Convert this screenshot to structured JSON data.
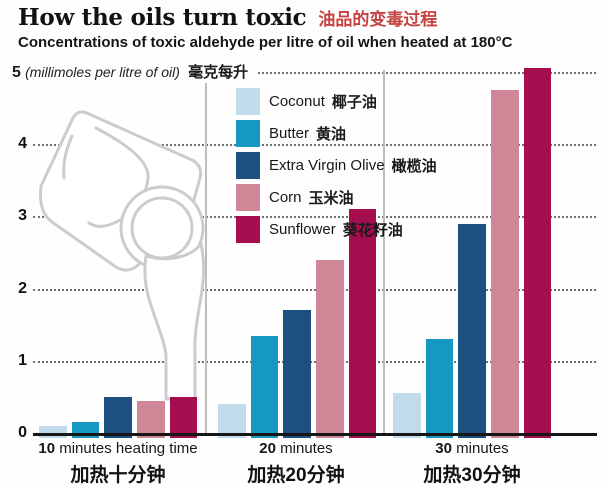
{
  "colors": {
    "title_cn_red": "#c64242",
    "grid": "#6f6f6f",
    "separator": "#bdbdbd",
    "bottle_outline": "#c9cdd0",
    "axis": "#161616"
  },
  "chart_data": {
    "type": "bar",
    "title": "How the oils turn toxic",
    "title_cn": "油品的变毒过程",
    "subtitle": "Concentrations of toxic aldehyde per litre of oil when heated at 180°C",
    "unit_label_en": "(millimoles per litre of oil)",
    "unit_label_cn": "毫克每升",
    "ylim": [
      0,
      5
    ],
    "ytick_step": 1,
    "grid": "dotted-horizontal",
    "legend_position": "top-center",
    "categories": [
      {
        "en_bold": "10",
        "en_rest": " minutes heating time",
        "cn": "加热十分钟"
      },
      {
        "en_bold": "20",
        "en_rest": " minutes",
        "cn": "加热20分钟"
      },
      {
        "en_bold": "30",
        "en_rest": " minutes",
        "cn": "加热30分钟"
      }
    ],
    "series": [
      {
        "name": "Coconut",
        "name_cn": "椰子油",
        "color": "#c2dbea",
        "values": [
          0.1,
          0.4,
          0.55
        ]
      },
      {
        "name": "Butter",
        "name_cn": "黄油",
        "color": "#1598c1",
        "values": [
          0.15,
          1.35,
          1.3
        ]
      },
      {
        "name": "Extra Virgin Olive",
        "name_cn": "橄榄油",
        "color": "#1d4f80",
        "values": [
          0.5,
          1.7,
          2.9
        ]
      },
      {
        "name": "Corn",
        "name_cn": "玉米油",
        "color": "#cf8798",
        "values": [
          0.45,
          2.4,
          4.75
        ]
      },
      {
        "name": "Sunflower",
        "name_cn": "葵花籽油",
        "color": "#a50d4f",
        "values": [
          0.5,
          3.1,
          5.05
        ]
      }
    ]
  }
}
